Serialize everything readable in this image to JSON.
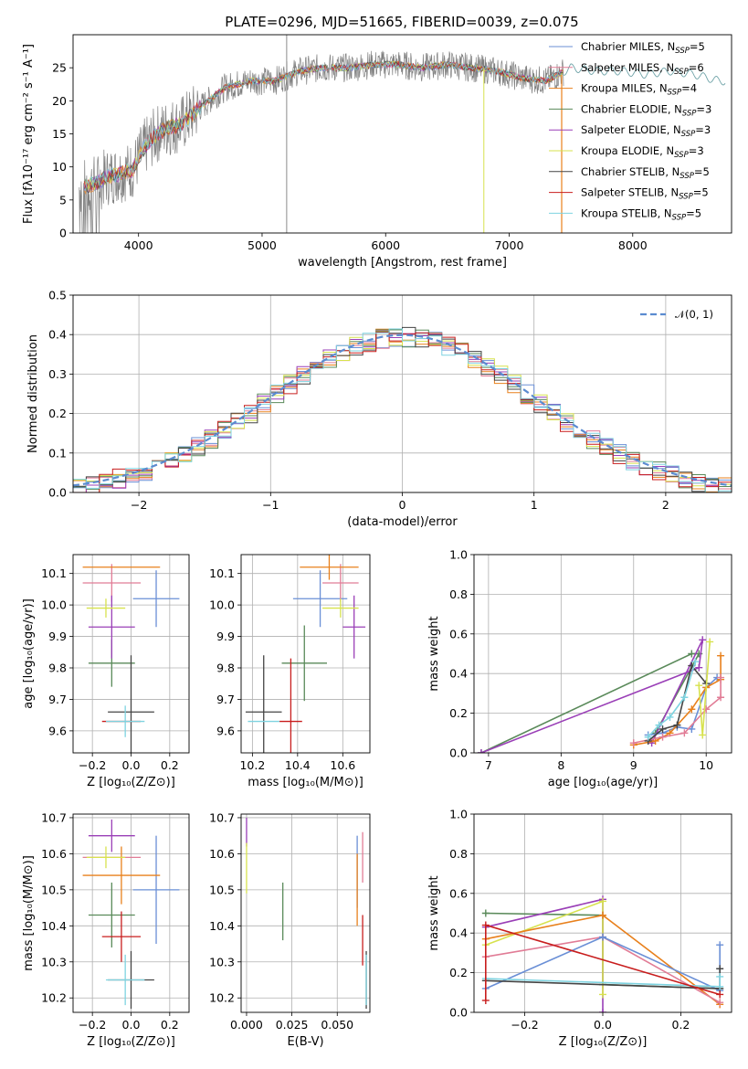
{
  "title": "PLATE=0296, MJD=51665, FIBERID=0039, z=0.075",
  "colors": {
    "chabrier_miles": "#6a8fd6",
    "salpeter_miles": "#e17c96",
    "kroupa_miles": "#e8801c",
    "chabrier_elodie": "#5a8a5a",
    "salpeter_elodie": "#9a3fb7",
    "kroupa_elodie": "#d7e24e",
    "chabrier_stelib": "#444444",
    "salpeter_stelib": "#c81d1d",
    "kroupa_stelib": "#7ed3e0",
    "data": "#808080",
    "normal": "#5b8bd0"
  },
  "legend_order": [
    "chabrier_miles",
    "salpeter_miles",
    "kroupa_miles",
    "chabrier_elodie",
    "salpeter_elodie",
    "kroupa_elodie",
    "chabrier_stelib",
    "salpeter_stelib",
    "kroupa_stelib"
  ],
  "chart_data": [
    {
      "id": "spectrum",
      "type": "line",
      "xlabel": "wavelength [Angstrom, rest frame]",
      "ylabel": "Flux [fλ10⁻¹⁷ erg cm⁻² s⁻¹ A⁻¹]",
      "xlim": [
        3470,
        8800
      ],
      "ylim": [
        0,
        30
      ],
      "xticks": [
        4000,
        5000,
        6000,
        7000,
        8000
      ],
      "yticks": [
        0,
        5,
        10,
        15,
        20,
        25
      ],
      "grid": false,
      "legend_placement": "top-right",
      "legend": [
        {
          "key": "chabrier_miles",
          "pre": "Chabrier MILES, N",
          "sub": "SSP",
          "post": "=5"
        },
        {
          "key": "salpeter_miles",
          "pre": "Salpeter MILES, N",
          "sub": "SSP",
          "post": "=6"
        },
        {
          "key": "kroupa_miles",
          "pre": "Kroupa MILES, N",
          "sub": "SSP",
          "post": "=4"
        },
        {
          "key": "chabrier_elodie",
          "pre": "Chabrier ELODIE, N",
          "sub": "SSP",
          "post": "=3"
        },
        {
          "key": "salpeter_elodie",
          "pre": "Salpeter ELODIE, N",
          "sub": "SSP",
          "post": "=3"
        },
        {
          "key": "kroupa_elodie",
          "pre": "Kroupa ELODIE, N",
          "sub": "SSP",
          "post": "=3"
        },
        {
          "key": "chabrier_stelib",
          "pre": "Chabrier STELIB, N",
          "sub": "SSP",
          "post": "=5"
        },
        {
          "key": "salpeter_stelib",
          "pre": "Salpeter STELIB, N",
          "sub": "SSP",
          "post": "=5"
        },
        {
          "key": "kroupa_stelib",
          "pre": "Kroupa STELIB, N",
          "sub": "SSP",
          "post": "=5"
        }
      ],
      "continuum": {
        "x": [
          3550,
          3650,
          3750,
          3850,
          3950,
          4050,
          4150,
          4250,
          4350,
          4500,
          4700,
          4900,
          5100,
          5300,
          5500,
          5700,
          5900,
          6100,
          6300,
          6500,
          6700,
          6900,
          7100,
          7300,
          7500,
          7700,
          7900,
          8100,
          8300,
          8500,
          8700
        ],
        "y": [
          7,
          7.5,
          8.5,
          9,
          9.5,
          13,
          15,
          16,
          16.5,
          19,
          22,
          23,
          23,
          24.5,
          25,
          25,
          25.5,
          25.5,
          25,
          25.5,
          25,
          24.5,
          23.5,
          23,
          25,
          24.5,
          24.5,
          24,
          24.5,
          24,
          23
        ]
      }
    },
    {
      "id": "residuals",
      "type": "line",
      "xlabel": "(data-model)/error",
      "ylabel": "Normed distribution",
      "xlim": [
        -2.5,
        2.5
      ],
      "ylim": [
        0,
        0.5
      ],
      "xticks": [
        -2,
        -1,
        0,
        1,
        2
      ],
      "yticks": [
        0.0,
        0.1,
        0.2,
        0.3,
        0.4,
        0.5
      ],
      "grid": true,
      "legend_placement": "top-right",
      "legend_label": "𝒩(0, 1)",
      "normal": {
        "mean": 0,
        "sigma": 1
      }
    },
    {
      "id": "age_vs_Z",
      "type": "scatter",
      "xlabel": "Z [log₁₀(Z/Z⊙)]",
      "ylabel": "age  [log₁₀(age/yr)]",
      "xlim": [
        -0.3,
        0.3
      ],
      "ylim": [
        9.53,
        10.16
      ],
      "xticks": [
        -0.2,
        0.0,
        0.2
      ],
      "yticks": [
        9.6,
        9.7,
        9.8,
        9.9,
        10.0,
        10.1
      ],
      "grid": true,
      "points": [
        {
          "key": "chabrier_miles",
          "x": 0.13,
          "xerr": 0.12,
          "y": 10.02,
          "yerr": 0.09
        },
        {
          "key": "salpeter_miles",
          "x": -0.1,
          "xerr": 0.15,
          "y": 10.07,
          "yerr": 0.06
        },
        {
          "key": "kroupa_miles",
          "x": -0.05,
          "xerr": 0.2,
          "y": 10.12,
          "yerr": 0.0
        },
        {
          "key": "chabrier_elodie",
          "x": -0.1,
          "xerr": 0.12,
          "y": 9.815,
          "yerr": 0.075
        },
        {
          "key": "salpeter_elodie",
          "x": -0.1,
          "xerr": 0.12,
          "y": 9.93,
          "yerr": 0.1
        },
        {
          "key": "kroupa_elodie",
          "x": -0.13,
          "xerr": 0.1,
          "y": 9.99,
          "yerr": 0.03
        },
        {
          "key": "chabrier_stelib",
          "x": 0.0,
          "xerr": 0.12,
          "y": 9.66,
          "yerr": 0.18
        },
        {
          "key": "salpeter_stelib",
          "x": -0.05,
          "xerr": 0.1,
          "y": 9.63,
          "yerr": 0.0
        },
        {
          "key": "kroupa_stelib",
          "x": -0.03,
          "xerr": 0.1,
          "y": 9.63,
          "yerr": 0.05
        }
      ]
    },
    {
      "id": "age_vs_mass",
      "type": "scatter",
      "xlabel": "mass [log₁₀(M/M⊙)]",
      "ylabel": "",
      "xlim": [
        10.15,
        10.72
      ],
      "ylim": [
        9.53,
        10.16
      ],
      "xticks": [
        10.2,
        10.4,
        10.6
      ],
      "yticks": [
        9.6,
        9.7,
        9.8,
        9.9,
        10.0,
        10.1
      ],
      "grid": true,
      "points": [
        {
          "key": "chabrier_miles",
          "x": 10.5,
          "xerr": 0.12,
          "y": 10.02,
          "yerr": 0.09
        },
        {
          "key": "salpeter_miles",
          "x": 10.59,
          "xerr": 0.08,
          "y": 10.07,
          "yerr": 0.06
        },
        {
          "key": "kroupa_miles",
          "x": 10.54,
          "xerr": 0.13,
          "y": 10.12,
          "yerr": 0.04
        },
        {
          "key": "chabrier_elodie",
          "x": 10.43,
          "xerr": 0.1,
          "y": 9.815,
          "yerr": 0.12
        },
        {
          "key": "salpeter_elodie",
          "x": 10.65,
          "xerr": 0.05,
          "y": 9.93,
          "yerr": 0.1
        },
        {
          "key": "kroupa_elodie",
          "x": 10.59,
          "xerr": 0.08,
          "y": 9.99,
          "yerr": 0.03
        },
        {
          "key": "chabrier_stelib",
          "x": 10.25,
          "xerr": 0.08,
          "y": 9.66,
          "yerr": 0.18
        },
        {
          "key": "salpeter_stelib",
          "x": 10.37,
          "xerr": 0.05,
          "y": 9.63,
          "yerr": 0.2
        },
        {
          "key": "kroupa_stelib",
          "x": 10.25,
          "xerr": 0.07,
          "y": 9.63,
          "yerr": 0.0
        }
      ]
    },
    {
      "id": "weight_vs_age",
      "type": "line",
      "xlabel": "age  [log₁₀(age/yr)]",
      "ylabel": "mass weight",
      "xlim": [
        6.8,
        10.35
      ],
      "ylim": [
        0,
        1
      ],
      "xticks": [
        7,
        8,
        9,
        10
      ],
      "yticks": [
        0.0,
        0.2,
        0.4,
        0.6,
        0.8,
        1.0
      ],
      "grid": true,
      "series": [
        {
          "key": "chabrier_elodie",
          "x": [
            6.9,
            9.8,
            9.9,
            9.3
          ],
          "y": [
            0.0,
            0.5,
            0.5,
            0.1
          ]
        },
        {
          "key": "salpeter_elodie",
          "x": [
            6.9,
            9.9,
            9.95,
            9.25
          ],
          "y": [
            0.0,
            0.43,
            0.57,
            0.05
          ]
        },
        {
          "key": "chabrier_miles",
          "x": [
            9.2,
            9.4,
            9.6,
            9.8,
            10.0,
            10.15
          ],
          "y": [
            0.09,
            0.1,
            0.13,
            0.12,
            0.33,
            0.38
          ]
        },
        {
          "key": "kroupa_miles",
          "x": [
            9.0,
            9.3,
            9.5,
            9.8,
            10.0,
            10.2,
            10.2
          ],
          "y": [
            0.04,
            0.06,
            0.1,
            0.22,
            0.33,
            0.37,
            0.49
          ]
        },
        {
          "key": "salpeter_miles",
          "x": [
            9.0,
            9.4,
            9.7,
            10.0,
            10.2,
            10.2
          ],
          "y": [
            0.05,
            0.08,
            0.1,
            0.22,
            0.28,
            0.38
          ]
        },
        {
          "key": "chabrier_stelib",
          "x": [
            9.2,
            9.4,
            9.6,
            9.8,
            10.0
          ],
          "y": [
            0.06,
            0.12,
            0.14,
            0.44,
            0.35
          ]
        },
        {
          "key": "kroupa_stelib",
          "x": [
            9.2,
            9.35,
            9.5,
            9.7,
            9.85
          ],
          "y": [
            0.08,
            0.14,
            0.18,
            0.28,
            0.46
          ]
        },
        {
          "key": "kroupa_elodie",
          "x": [
            9.9,
            9.95,
            10.05
          ],
          "y": [
            0.34,
            0.09,
            0.56
          ]
        }
      ]
    },
    {
      "id": "mass_vs_Z",
      "type": "scatter",
      "xlabel": "Z [log₁₀(Z/Z⊙)]",
      "ylabel": "mass [log₁₀(M/M⊙)]",
      "xlim": [
        -0.3,
        0.3
      ],
      "ylim": [
        10.16,
        10.71
      ],
      "xticks": [
        -0.2,
        0.0,
        0.2
      ],
      "yticks": [
        10.2,
        10.3,
        10.4,
        10.5,
        10.6,
        10.7
      ],
      "grid": true,
      "points": [
        {
          "key": "chabrier_miles",
          "x": 0.13,
          "xerr": 0.12,
          "y": 10.5,
          "yerr": 0.15
        },
        {
          "key": "salpeter_miles",
          "x": -0.1,
          "xerr": 0.15,
          "y": 10.59,
          "yerr": 0.0
        },
        {
          "key": "kroupa_miles",
          "x": -0.05,
          "xerr": 0.2,
          "y": 10.54,
          "yerr": 0.08
        },
        {
          "key": "chabrier_elodie",
          "x": -0.1,
          "xerr": 0.12,
          "y": 10.43,
          "yerr": 0.09
        },
        {
          "key": "salpeter_elodie",
          "x": -0.1,
          "xerr": 0.12,
          "y": 10.65,
          "yerr": 0.045
        },
        {
          "key": "kroupa_elodie",
          "x": -0.13,
          "xerr": 0.1,
          "y": 10.59,
          "yerr": 0.03
        },
        {
          "key": "chabrier_stelib",
          "x": 0.0,
          "xerr": 0.12,
          "y": 10.25,
          "yerr": 0.08
        },
        {
          "key": "salpeter_stelib",
          "x": -0.05,
          "xerr": 0.1,
          "y": 10.37,
          "yerr": 0.07
        },
        {
          "key": "kroupa_stelib",
          "x": -0.03,
          "xerr": 0.1,
          "y": 10.25,
          "yerr": 0.07
        }
      ]
    },
    {
      "id": "mass_vs_ebv",
      "type": "scatter",
      "xlabel": "E(B-V)",
      "ylabel": "",
      "xlim": [
        -0.003,
        0.068
      ],
      "ylim": [
        10.16,
        10.71
      ],
      "xticks": [
        0.0,
        0.025,
        0.05
      ],
      "xticklabels": [
        "0.000",
        "0.025",
        "0.050"
      ],
      "yticks": [
        10.2,
        10.3,
        10.4,
        10.5,
        10.6,
        10.7
      ],
      "grid": true,
      "points": [
        {
          "key": "chabrier_miles",
          "x": 0.061,
          "xerr": 0.0,
          "y": 10.55,
          "yerr": 0.1
        },
        {
          "key": "salpeter_miles",
          "x": 0.064,
          "xerr": 0.0,
          "y": 10.59,
          "yerr": 0.07
        },
        {
          "key": "kroupa_miles",
          "x": 0.061,
          "xerr": 0.0,
          "y": 10.5,
          "yerr": 0.1
        },
        {
          "key": "chabrier_elodie",
          "x": 0.02,
          "xerr": 0.0,
          "y": 10.44,
          "yerr": 0.08
        },
        {
          "key": "salpeter_elodie",
          "x": 0.0,
          "xerr": 0.0,
          "y": 10.66,
          "yerr": 0.04
        },
        {
          "key": "kroupa_elodie",
          "x": 0.0,
          "xerr": 0.0,
          "y": 10.56,
          "yerr": 0.07
        },
        {
          "key": "chabrier_stelib",
          "x": 0.066,
          "xerr": 0.0,
          "y": 10.25,
          "yerr": 0.08
        },
        {
          "key": "salpeter_stelib",
          "x": 0.064,
          "xerr": 0.0,
          "y": 10.36,
          "yerr": 0.07
        },
        {
          "key": "kroupa_stelib",
          "x": 0.066,
          "xerr": 0.0,
          "y": 10.25,
          "yerr": 0.07
        }
      ]
    },
    {
      "id": "weight_vs_Z",
      "type": "line",
      "xlabel": "Z [log₁₀(Z/Z⊙)]",
      "ylabel": "mass weight",
      "xlim": [
        -0.33,
        0.33
      ],
      "ylim": [
        0,
        1
      ],
      "xticks": [
        -0.2,
        0.0,
        0.2
      ],
      "yticks": [
        0.0,
        0.2,
        0.4,
        0.6,
        0.8,
        1.0
      ],
      "grid": true,
      "series": [
        {
          "key": "chabrier_elodie",
          "x": [
            -0.3,
            0.0,
            0.0,
            0.3
          ],
          "y": [
            0.5,
            0.49,
            0.14,
            0.12
          ]
        },
        {
          "key": "salpeter_elodie",
          "x": [
            -0.3,
            0.0,
            0.0
          ],
          "y": [
            0.43,
            0.57,
            0.0
          ]
        },
        {
          "key": "kroupa_elodie",
          "x": [
            -0.3,
            0.0,
            0.0
          ],
          "y": [
            0.34,
            0.56,
            0.09
          ]
        },
        {
          "key": "kroupa_miles",
          "x": [
            -0.3,
            0.0,
            0.3
          ],
          "y": [
            0.37,
            0.49,
            0.04
          ]
        },
        {
          "key": "salpeter_miles",
          "x": [
            -0.3,
            0.0,
            0.3
          ],
          "y": [
            0.28,
            0.38,
            0.05
          ]
        },
        {
          "key": "chabrier_miles",
          "x": [
            -0.3,
            0.0,
            0.3,
            0.3
          ],
          "y": [
            0.12,
            0.38,
            0.11,
            0.34
          ]
        },
        {
          "key": "chabrier_stelib",
          "x": [
            -0.3,
            0.3,
            0.3
          ],
          "y": [
            0.16,
            0.12,
            0.22
          ]
        },
        {
          "key": "kroupa_stelib",
          "x": [
            -0.3,
            0.3,
            0.3
          ],
          "y": [
            0.17,
            0.13,
            0.18
          ]
        },
        {
          "key": "salpeter_stelib",
          "x": [
            -0.3,
            -0.3,
            0.3
          ],
          "y": [
            0.06,
            0.44,
            0.09
          ]
        }
      ]
    }
  ]
}
